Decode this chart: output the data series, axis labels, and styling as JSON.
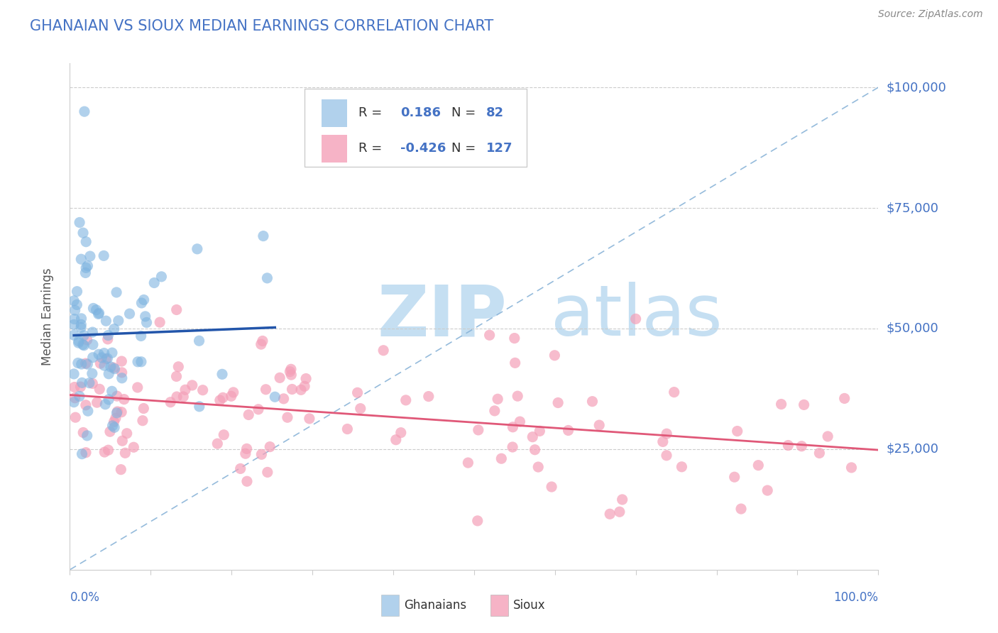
{
  "title": "GHANAIAN VS SIOUX MEDIAN EARNINGS CORRELATION CHART",
  "source": "Source: ZipAtlas.com",
  "ylabel": "Median Earnings",
  "legend_ghanaian_R": "0.186",
  "legend_ghanaian_N": "82",
  "legend_sioux_R": "-0.426",
  "legend_sioux_N": "127",
  "blue_color": "#7db3e0",
  "pink_color": "#f4a0b8",
  "blue_line_color": "#2255aa",
  "pink_line_color": "#e05878",
  "dashed_line_color": "#8ab4d8",
  "title_color": "#4472c4",
  "label_color": "#4472c4",
  "background_color": "#ffffff",
  "ylim": [
    0,
    105000
  ],
  "xlim": [
    0.0,
    1.0
  ]
}
